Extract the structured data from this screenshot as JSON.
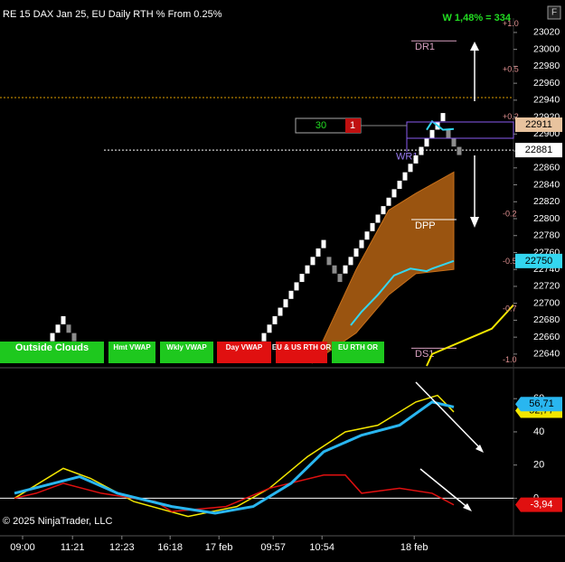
{
  "chart_data": [
    {
      "type": "renko",
      "title": "RE 15 DAX Jan 25, EU Daily RTH % From 0.25%",
      "annotation": "W 1,48% = 334",
      "xlim": [
        0,
        92
      ],
      "ylim": [
        22626,
        23037
      ],
      "yticks": [
        22640,
        22660,
        22680,
        22700,
        22720,
        22740,
        22760,
        22780,
        22800,
        22820,
        22840,
        22860,
        22880,
        22900,
        22920,
        22940,
        22960,
        22980,
        23000,
        23020
      ],
      "xticks": [
        {
          "value": 1.5,
          "label": "09:00"
        },
        {
          "value": 10.7,
          "label": "11:21"
        },
        {
          "value": 19.8,
          "label": "12:23"
        },
        {
          "value": 28.7,
          "label": "16:18"
        },
        {
          "value": 37.7,
          "label": "17 feb"
        },
        {
          "value": 47.7,
          "label": "09:57"
        },
        {
          "value": 56.7,
          "label": "10:54"
        },
        {
          "value": 73.7,
          "label": "18 feb"
        }
      ],
      "up_color": "#ffffff",
      "down_color": "#8c8c8c",
      "bricks": [
        null,
        null,
        null,
        null,
        null,
        null,
        22650,
        22660,
        22670,
        22680,
        22670,
        22660,
        null,
        null,
        null,
        null,
        null,
        null,
        null,
        null,
        null,
        null,
        null,
        null,
        null,
        null,
        null,
        null,
        null,
        null,
        null,
        null,
        null,
        null,
        null,
        null,
        null,
        null,
        null,
        null,
        null,
        null,
        null,
        null,
        22640,
        22650,
        22660,
        22670,
        22680,
        22690,
        22700,
        22710,
        22720,
        22730,
        22740,
        22750,
        22760,
        22770,
        22750,
        22740,
        22730,
        22740,
        22750,
        22760,
        22770,
        22780,
        22790,
        22800,
        22810,
        22820,
        22830,
        22840,
        22850,
        22860,
        22870,
        22880,
        22890,
        22900,
        22910,
        22920,
        22900,
        22890,
        22880
      ],
      "cloud": {
        "color": "#9a5410",
        "x": [
          55,
          63,
          69,
          74,
          81
        ],
        "upper": [
          22630,
          22740,
          22810,
          22830,
          22855
        ],
        "lower": [
          22630,
          22665,
          22710,
          22735,
          22740
        ]
      },
      "series": [
        {
          "color": "#33d6f0",
          "x": [
            62,
            64,
            67,
            70,
            73,
            76,
            77,
            81
          ],
          "values": [
            22674,
            22690,
            22710,
            22733,
            22741,
            22738,
            22741,
            22750
          ]
        },
        {
          "color": "#33d6f0",
          "x": [
            76,
            77,
            79,
            81
          ],
          "values": [
            22905,
            22915,
            22905,
            22906
          ]
        },
        {
          "color": "#f2e600",
          "x": [
            76,
            77,
            88,
            92
          ],
          "values": [
            22626,
            22640,
            22670,
            22698
          ]
        }
      ],
      "lines": [
        {
          "value": 22943,
          "color": "#e0a000"
        },
        {
          "value": 22881,
          "color": "#ffffff"
        }
      ],
      "levels": [
        {
          "label": "DR1",
          "value": 23010,
          "color": "#d8a0c0"
        },
        {
          "label": "WR1",
          "value": 22876,
          "color": "#9a7cf0"
        },
        {
          "label": "DPP",
          "value": 22799,
          "color": "#ffffff"
        },
        {
          "label": "DS1",
          "value": 22647,
          "color": "#d8a0c0"
        }
      ],
      "pct_labels": [
        {
          "value": 23030,
          "label": "+1.0"
        },
        {
          "value": 22976,
          "label": "+0.5"
        },
        {
          "value": 22920,
          "label": "+0.2"
        },
        {
          "value": 22805,
          "label": "-0.2"
        },
        {
          "value": 22749,
          "label": "-0.5"
        },
        {
          "value": 22693,
          "label": "-0.7"
        },
        {
          "value": 22633,
          "label": "-1.0"
        }
      ],
      "price_tags": [
        {
          "value": 22911,
          "color": "#e8c39e"
        },
        {
          "value": 22881,
          "color": "#ffffff"
        },
        {
          "value": 22750,
          "color": "#33d6f0"
        }
      ],
      "order_box": {
        "quantity": "30",
        "count": "1"
      },
      "buttons": [
        {
          "label": "Outside Clouds",
          "color": "#1ec81e"
        },
        {
          "label": "Hmt VWAP",
          "color": "#1ec81e"
        },
        {
          "label": "Wkly VWAP",
          "color": "#1ec81e"
        },
        {
          "label": "Day VWAP",
          "color": "#e01010"
        },
        {
          "label": "EU & US RTH OR",
          "color": "#e01010"
        },
        {
          "label": "EU RTH OR",
          "color": "#1ec81e"
        }
      ]
    },
    {
      "type": "line",
      "copyright": "© 2025 NinjaTrader, LLC",
      "xlim": [
        0,
        92
      ],
      "ylim": [
        -21,
        77
      ],
      "yticks": [
        0,
        20,
        40,
        60
      ],
      "series": [
        {
          "color": "#f2e600",
          "x": [
            0,
            9,
            14,
            22,
            32,
            41,
            47,
            54,
            61,
            67,
            74,
            78,
            81
          ],
          "values": [
            0,
            18,
            12,
            -2,
            -11,
            -5,
            6,
            25,
            40,
            44,
            58,
            62,
            52
          ]
        },
        {
          "color": "#e01010",
          "x": [
            0,
            4,
            9,
            16,
            26,
            29,
            39,
            47,
            57,
            61,
            64,
            71,
            77,
            81
          ],
          "values": [
            0,
            3,
            9,
            3,
            -2,
            -8,
            -5,
            6,
            14,
            14,
            3,
            6,
            3,
            -4
          ]
        },
        {
          "color": "#29b6f0",
          "x": [
            0,
            12,
            19,
            29,
            37,
            44,
            51,
            57,
            64,
            71,
            77,
            81
          ],
          "values": [
            3,
            13,
            3,
            -5,
            -9,
            -5,
            9,
            28,
            38,
            44,
            58,
            55
          ]
        }
      ],
      "value_tags": [
        {
          "value": 52.77,
          "label": "52,77",
          "color": "#f2e600"
        },
        {
          "value": 56.71,
          "label": "56,71",
          "color": "#29b6f0"
        },
        {
          "value": -3.94,
          "label": "-3,94",
          "color": "#e01010"
        }
      ]
    }
  ]
}
